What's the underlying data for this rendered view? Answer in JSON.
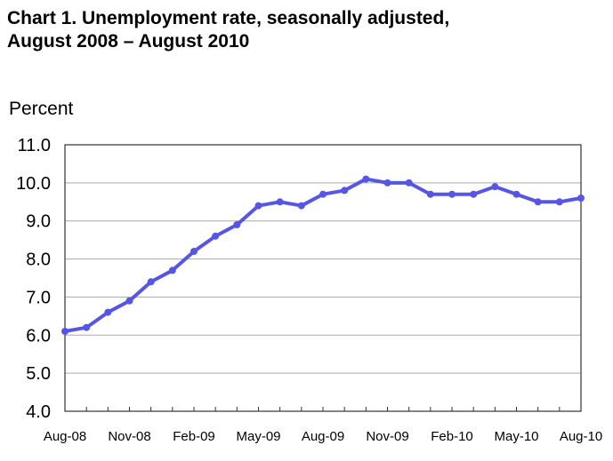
{
  "chart_data": {
    "type": "line",
    "title_line1": "Chart 1. Unemployment rate, seasonally adjusted,",
    "title_line2": "August 2008 – August 2010",
    "ylabel": "Percent",
    "xlabel": "",
    "ylim": [
      4.0,
      11.0
    ],
    "yticks": [
      "4.0",
      "5.0",
      "6.0",
      "7.0",
      "8.0",
      "9.0",
      "10.0",
      "11.0"
    ],
    "grid": true,
    "x": [
      "Aug-08",
      "Sep-08",
      "Oct-08",
      "Nov-08",
      "Dec-08",
      "Jan-09",
      "Feb-09",
      "Mar-09",
      "Apr-09",
      "May-09",
      "Jun-09",
      "Jul-09",
      "Aug-09",
      "Sep-09",
      "Oct-09",
      "Nov-09",
      "Dec-09",
      "Jan-10",
      "Feb-10",
      "Mar-10",
      "Apr-10",
      "May-10",
      "Jun-10",
      "Jul-10",
      "Aug-10"
    ],
    "xtick_labels": [
      "Aug-08",
      "Nov-08",
      "Feb-09",
      "May-09",
      "Aug-09",
      "Nov-09",
      "Feb-10",
      "May-10",
      "Aug-10"
    ],
    "series": [
      {
        "name": "Unemployment rate",
        "color": "#5656e6",
        "values": [
          6.1,
          6.2,
          6.6,
          6.9,
          7.4,
          7.7,
          8.2,
          8.6,
          8.9,
          9.4,
          9.5,
          9.4,
          9.7,
          9.8,
          10.1,
          10.0,
          10.0,
          9.7,
          9.7,
          9.7,
          9.9,
          9.7,
          9.5,
          9.5,
          9.6
        ]
      }
    ]
  }
}
